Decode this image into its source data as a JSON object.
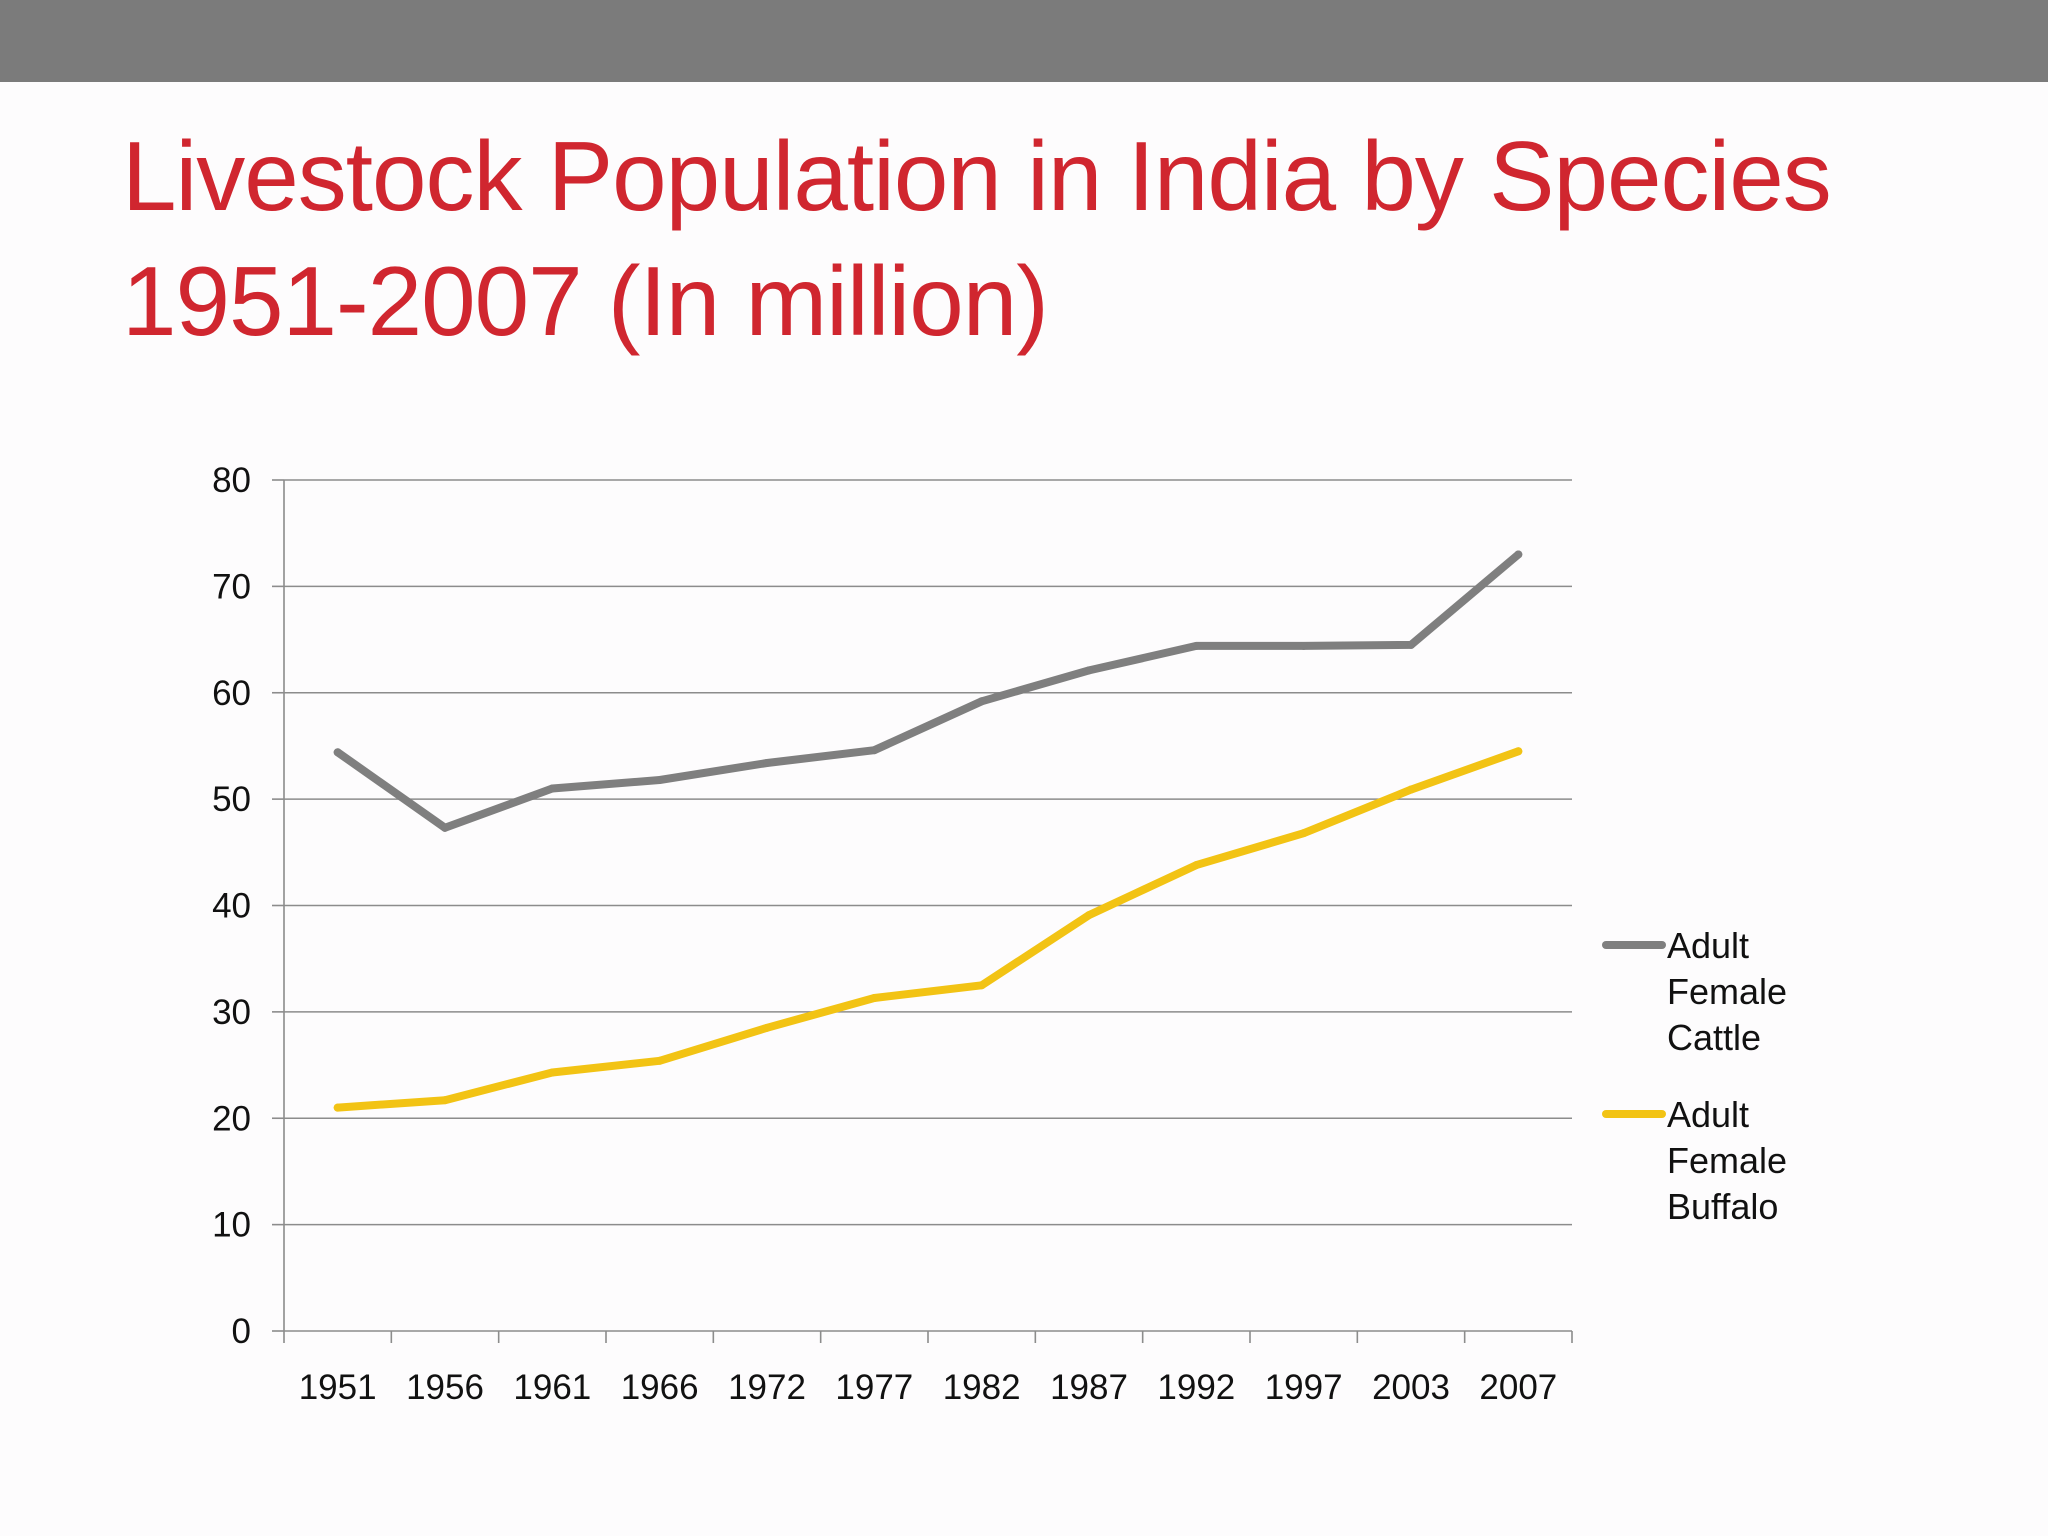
{
  "title_lines": [
    "Livestock Population in India by Species",
    "1951-2007 (In million)"
  ],
  "chart_data": {
    "type": "line",
    "title": "Livestock Population in India by Species 1951-2007 (In million)",
    "xlabel": "",
    "ylabel": "",
    "ylim": [
      0,
      80
    ],
    "y_ticks": [
      0,
      10,
      20,
      30,
      40,
      50,
      60,
      70,
      80
    ],
    "grid": true,
    "legend_position": "right",
    "categories": [
      "1951",
      "1956",
      "1961",
      "1966",
      "1972",
      "1977",
      "1982",
      "1987",
      "1992",
      "1997",
      "2003",
      "2007"
    ],
    "series": [
      {
        "name": "Adult Female Cattle",
        "legend_lines": [
          "Adult",
          "Female",
          "Cattle"
        ],
        "color": "#7f7f7f",
        "values": [
          54.4,
          47.3,
          51.0,
          51.8,
          53.4,
          54.6,
          59.2,
          62.1,
          64.4,
          64.4,
          64.5,
          73.0
        ]
      },
      {
        "name": "Adult Female Buffalo",
        "legend_lines": [
          "Adult",
          "Female",
          "Buffalo"
        ],
        "color": "#f2c314",
        "values": [
          21.0,
          21.7,
          24.3,
          25.4,
          28.5,
          31.3,
          32.5,
          39.1,
          43.8,
          46.8,
          50.9,
          54.5
        ]
      }
    ]
  }
}
